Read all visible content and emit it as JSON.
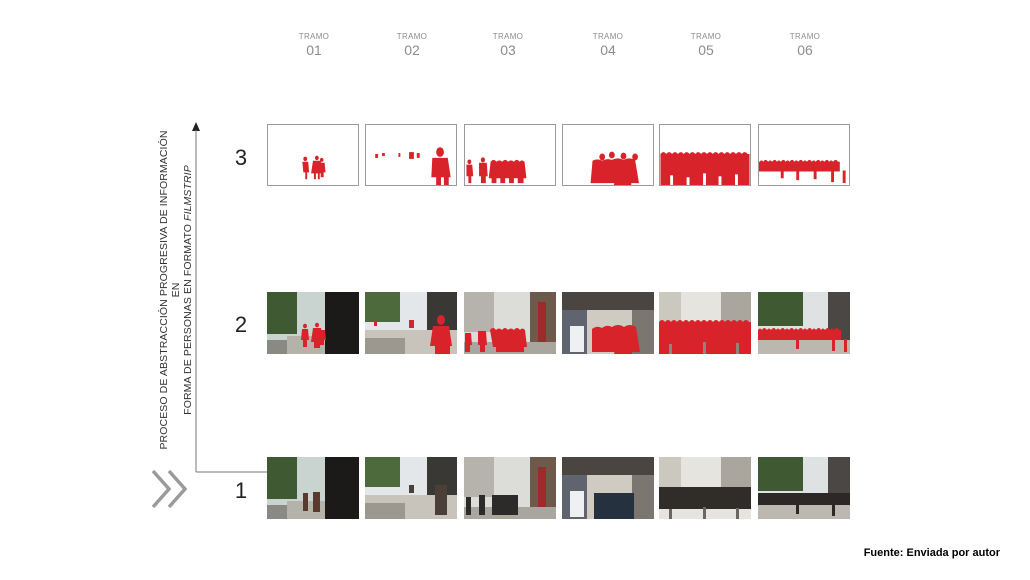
{
  "tramos": [
    {
      "label": "TRAMO",
      "number": "01"
    },
    {
      "label": "TRAMO",
      "number": "02"
    },
    {
      "label": "TRAMO",
      "number": "03"
    },
    {
      "label": "TRAMO",
      "number": "04"
    },
    {
      "label": "TRAMO",
      "number": "05"
    },
    {
      "label": "TRAMO",
      "number": "06"
    }
  ],
  "rows": [
    {
      "label": "3",
      "type": "silhouettes-only"
    },
    {
      "label": "2",
      "type": "photo-with-red-silhouettes"
    },
    {
      "label": "1",
      "type": "original-photo"
    }
  ],
  "axis": {
    "line1": "PROCESO DE ABSTRACCIÓN PROGRESIVA DE INFORMACIÓN EN",
    "line2_prefix": "FORMA DE PERSONAS EN FORMATO ",
    "line2_emph": "FILMSTRIP"
  },
  "icons": {
    "axis_arrow": "arrow-up-icon",
    "chevrons": "double-chevron-right-icon"
  },
  "colors": {
    "silhouette": "#d8232a",
    "axis": "#555555",
    "chevron": "#9a9a9a"
  },
  "footer": {
    "source": "Fuente: Enviada por autor"
  }
}
